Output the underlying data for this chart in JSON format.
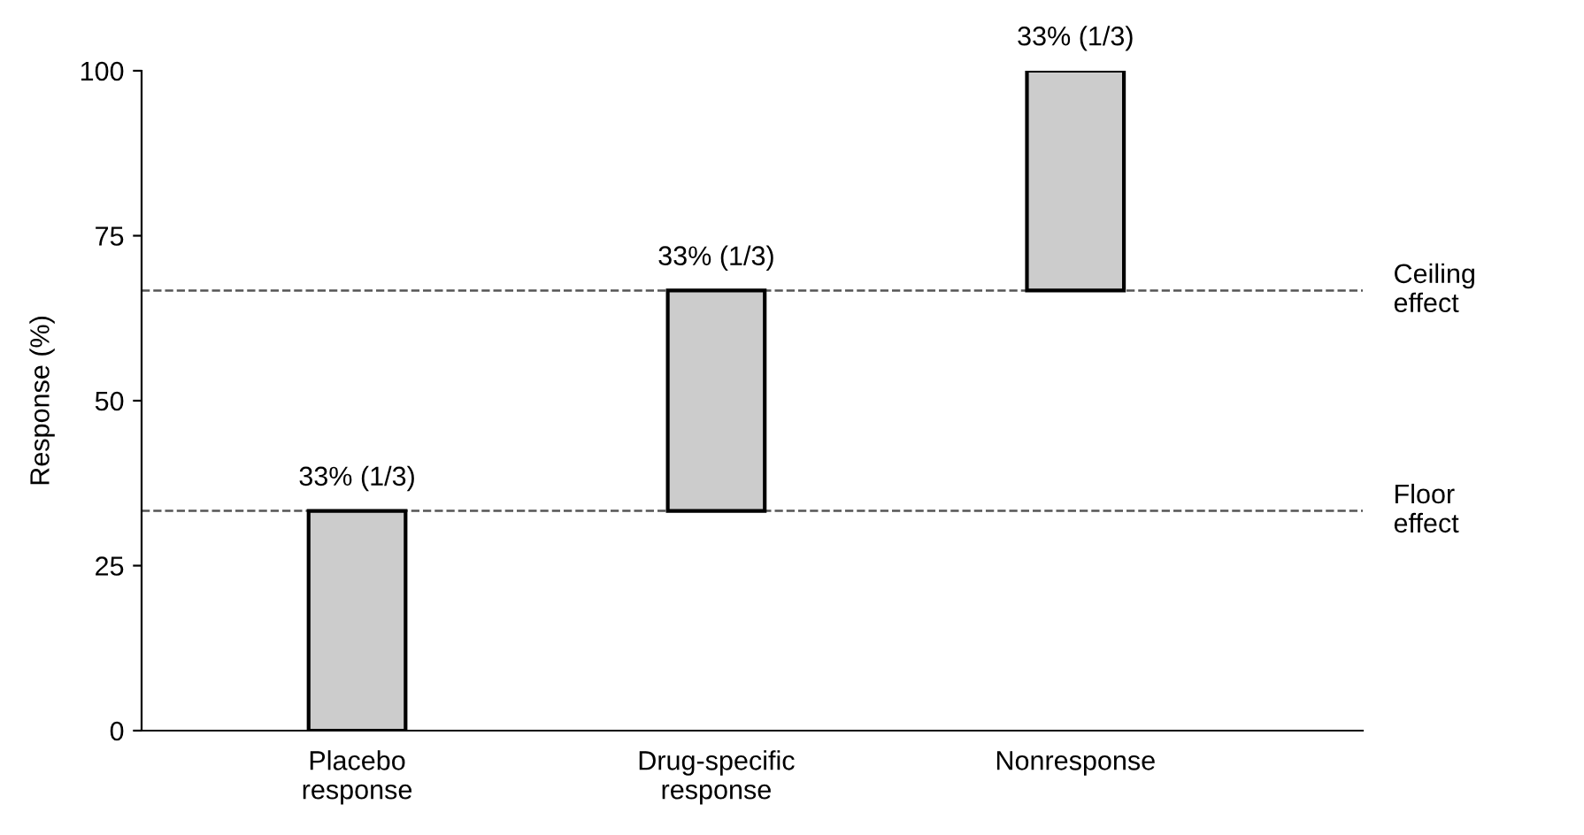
{
  "chart_data": {
    "type": "bar",
    "ylabel": "Response (%)",
    "categories": [
      "Placebo\nresponse",
      "Drug-specific\nresponse",
      "Nonresponse"
    ],
    "base": [
      0,
      33.3,
      66.7
    ],
    "values": [
      33.3,
      33.4,
      33.3
    ],
    "value_labels": [
      "33% (1/3)",
      "33% (1/3)",
      "33% (1/3)"
    ],
    "color": "#cccccc",
    "ylim": [
      0,
      100
    ],
    "yticks": [
      0,
      25,
      50,
      75,
      100
    ],
    "ref_lines": [
      {
        "axis": "y",
        "value": 33.3,
        "label": "Floor\neffect",
        "color": "#555555",
        "line_style": "dashed"
      },
      {
        "axis": "y",
        "value": 66.7,
        "label": "Ceiling\neffect",
        "color": "#555555",
        "line_style": "dashed"
      }
    ],
    "grid": false,
    "legend": false
  }
}
